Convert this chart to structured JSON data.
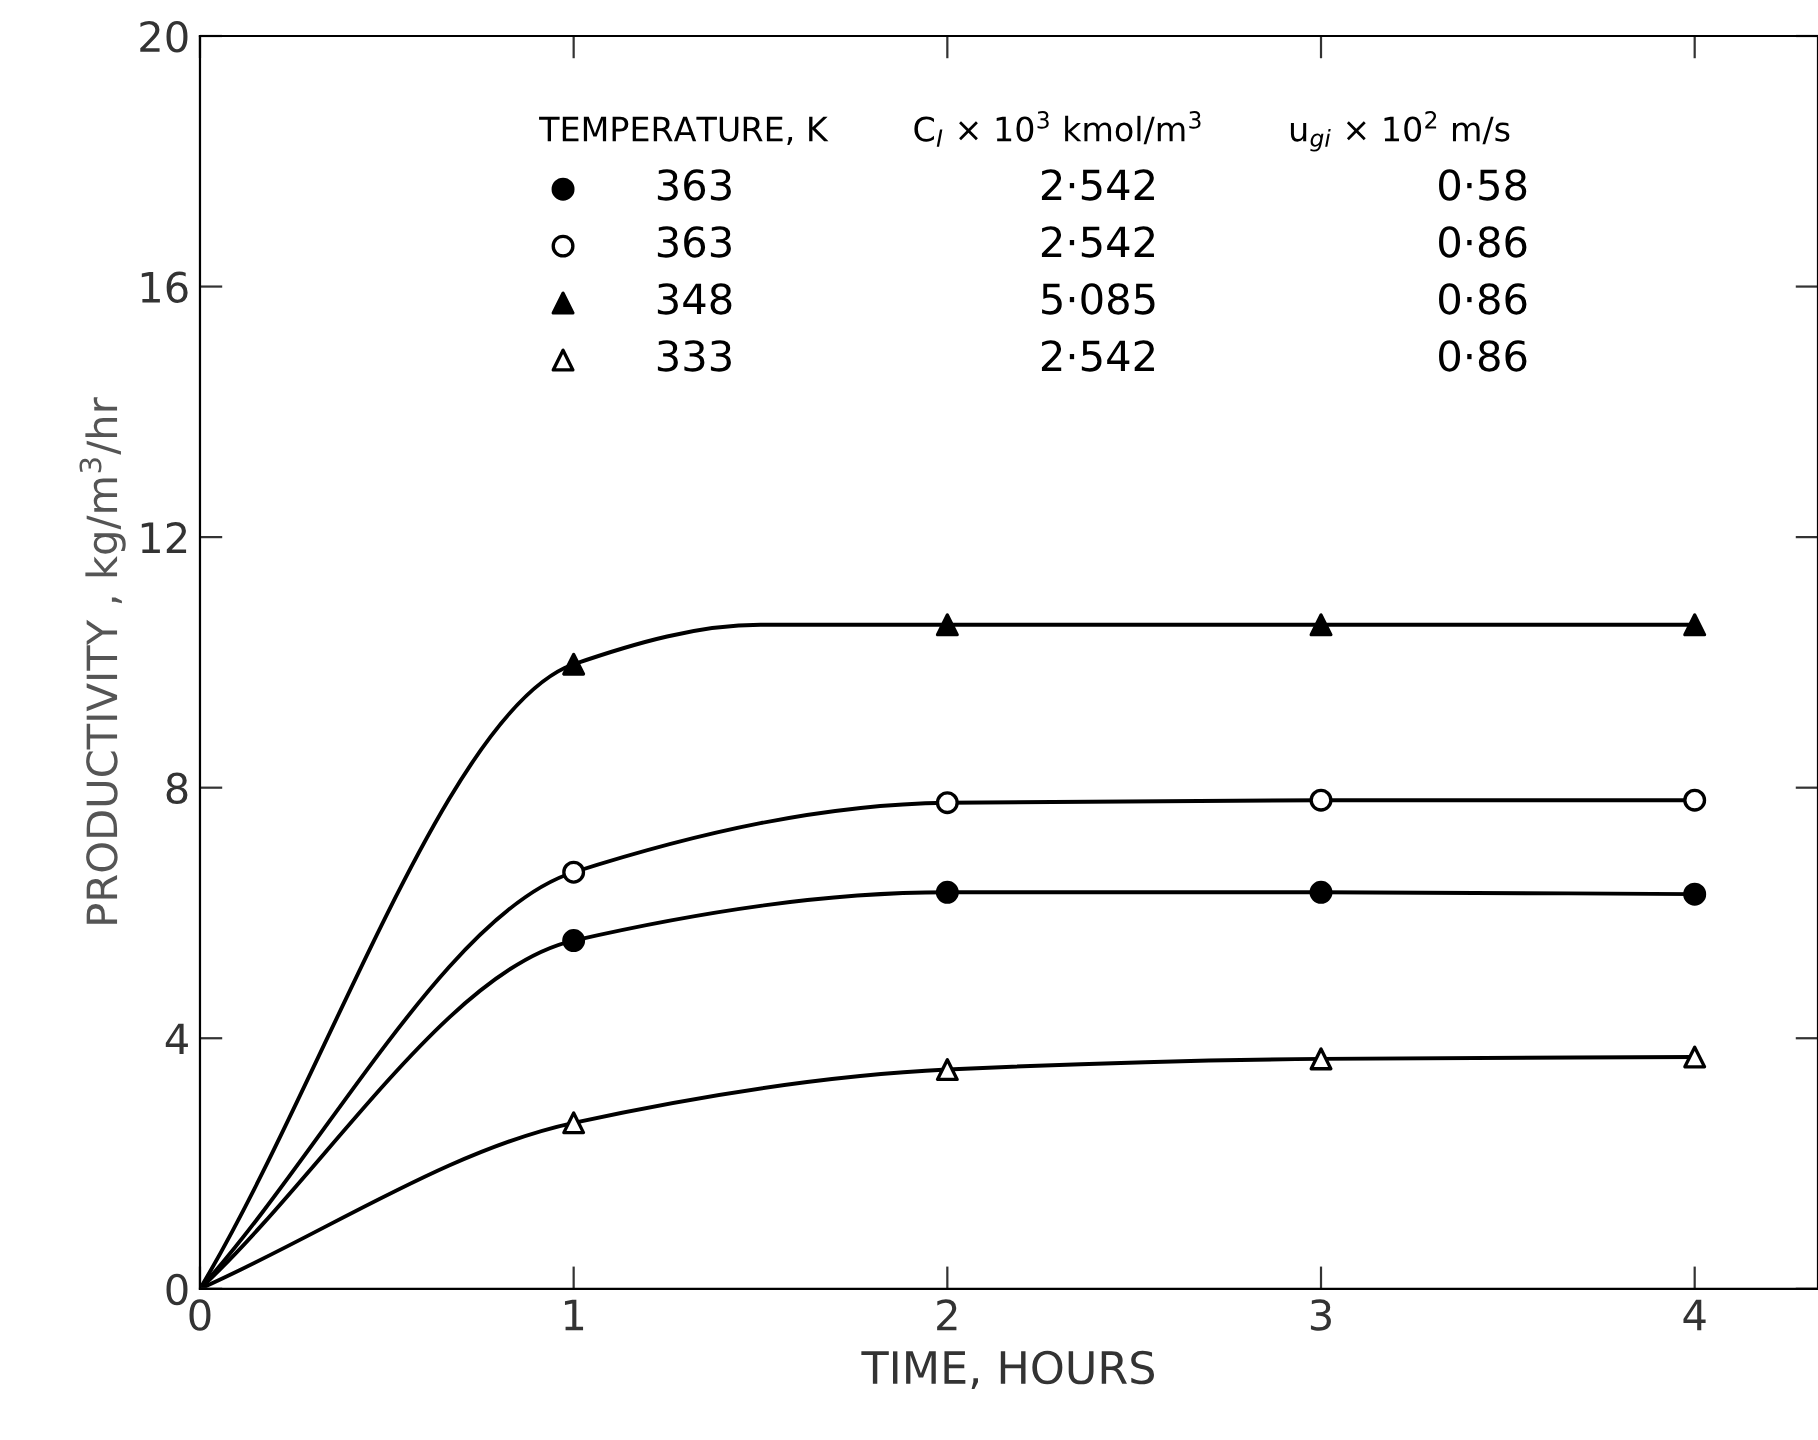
{
  "chart_data": {
    "type": "scatter",
    "xlabel": "TIME, HOURS",
    "ylabel": "PRODUCTIVITY , kg/m$^{3}$/hr",
    "legend_title": "TEMPERATURE, K        C$_{I}$ × 10$^{3}$ kmol/m$^{3}$        u$_{gi}$ × 10$^{2}$ m/s",
    "xlim": [
      0,
      4.33
    ],
    "ylim": [
      0,
      20
    ],
    "xticks": [
      0,
      1,
      2,
      3,
      4
    ],
    "yticks": [
      0,
      4,
      8,
      12,
      16,
      20
    ],
    "grid": false,
    "legend": "top",
    "line_style": "solid",
    "series": [
      {
        "name": "363                       2·542                     0·58",
        "color": "#000000",
        "marker": "circle",
        "x": [
          1,
          2,
          3,
          4
        ],
        "values": [
          5.56,
          6.33,
          6.33,
          6.3
        ]
      },
      {
        "name": "363                       2·542                     0·86",
        "color": "#000000",
        "colors": [
          "#ffffff",
          "#ffffff",
          "#ffffff",
          "#ffffff"
        ],
        "marker": "circle",
        "x": [
          1,
          2,
          3,
          4
        ],
        "values": [
          6.65,
          7.76,
          7.8,
          7.8
        ]
      },
      {
        "name": "348                       5·085                     0·86",
        "color": "#000000",
        "marker": "triangle",
        "x": [
          1,
          2,
          3,
          4
        ],
        "values": [
          9.97,
          10.6,
          10.6,
          10.6
        ]
      },
      {
        "name": "333                       2·542                     0·86",
        "color": "#000000",
        "colors": [
          "#ffffff",
          "#ffffff",
          "#ffffff",
          "#ffffff"
        ],
        "marker": "triangle",
        "x": [
          1,
          2,
          3,
          4
        ],
        "values": [
          2.65,
          3.5,
          3.67,
          3.7
        ]
      },
      {
        "type": "line",
        "color": "#000000",
        "x": [
          0,
          1,
          2,
          3,
          4
        ],
        "values": [
          0,
          5.56,
          6.33,
          6.33,
          6.3
        ]
      },
      {
        "type": "line",
        "color": "#000000",
        "x": [
          0,
          1,
          2,
          3,
          4
        ],
        "values": [
          0,
          6.65,
          7.76,
          7.8,
          7.8
        ]
      },
      {
        "type": "line",
        "color": "#000000",
        "x": [
          0,
          1,
          1.5,
          2,
          3,
          4
        ],
        "values": [
          0,
          9.97,
          10.6,
          10.6,
          10.6,
          10.6
        ]
      },
      {
        "type": "line",
        "color": "#000000",
        "x": [
          0,
          1,
          2,
          3,
          4
        ],
        "values": [
          0,
          2.65,
          3.5,
          3.67,
          3.7
        ]
      }
    ]
  }
}
